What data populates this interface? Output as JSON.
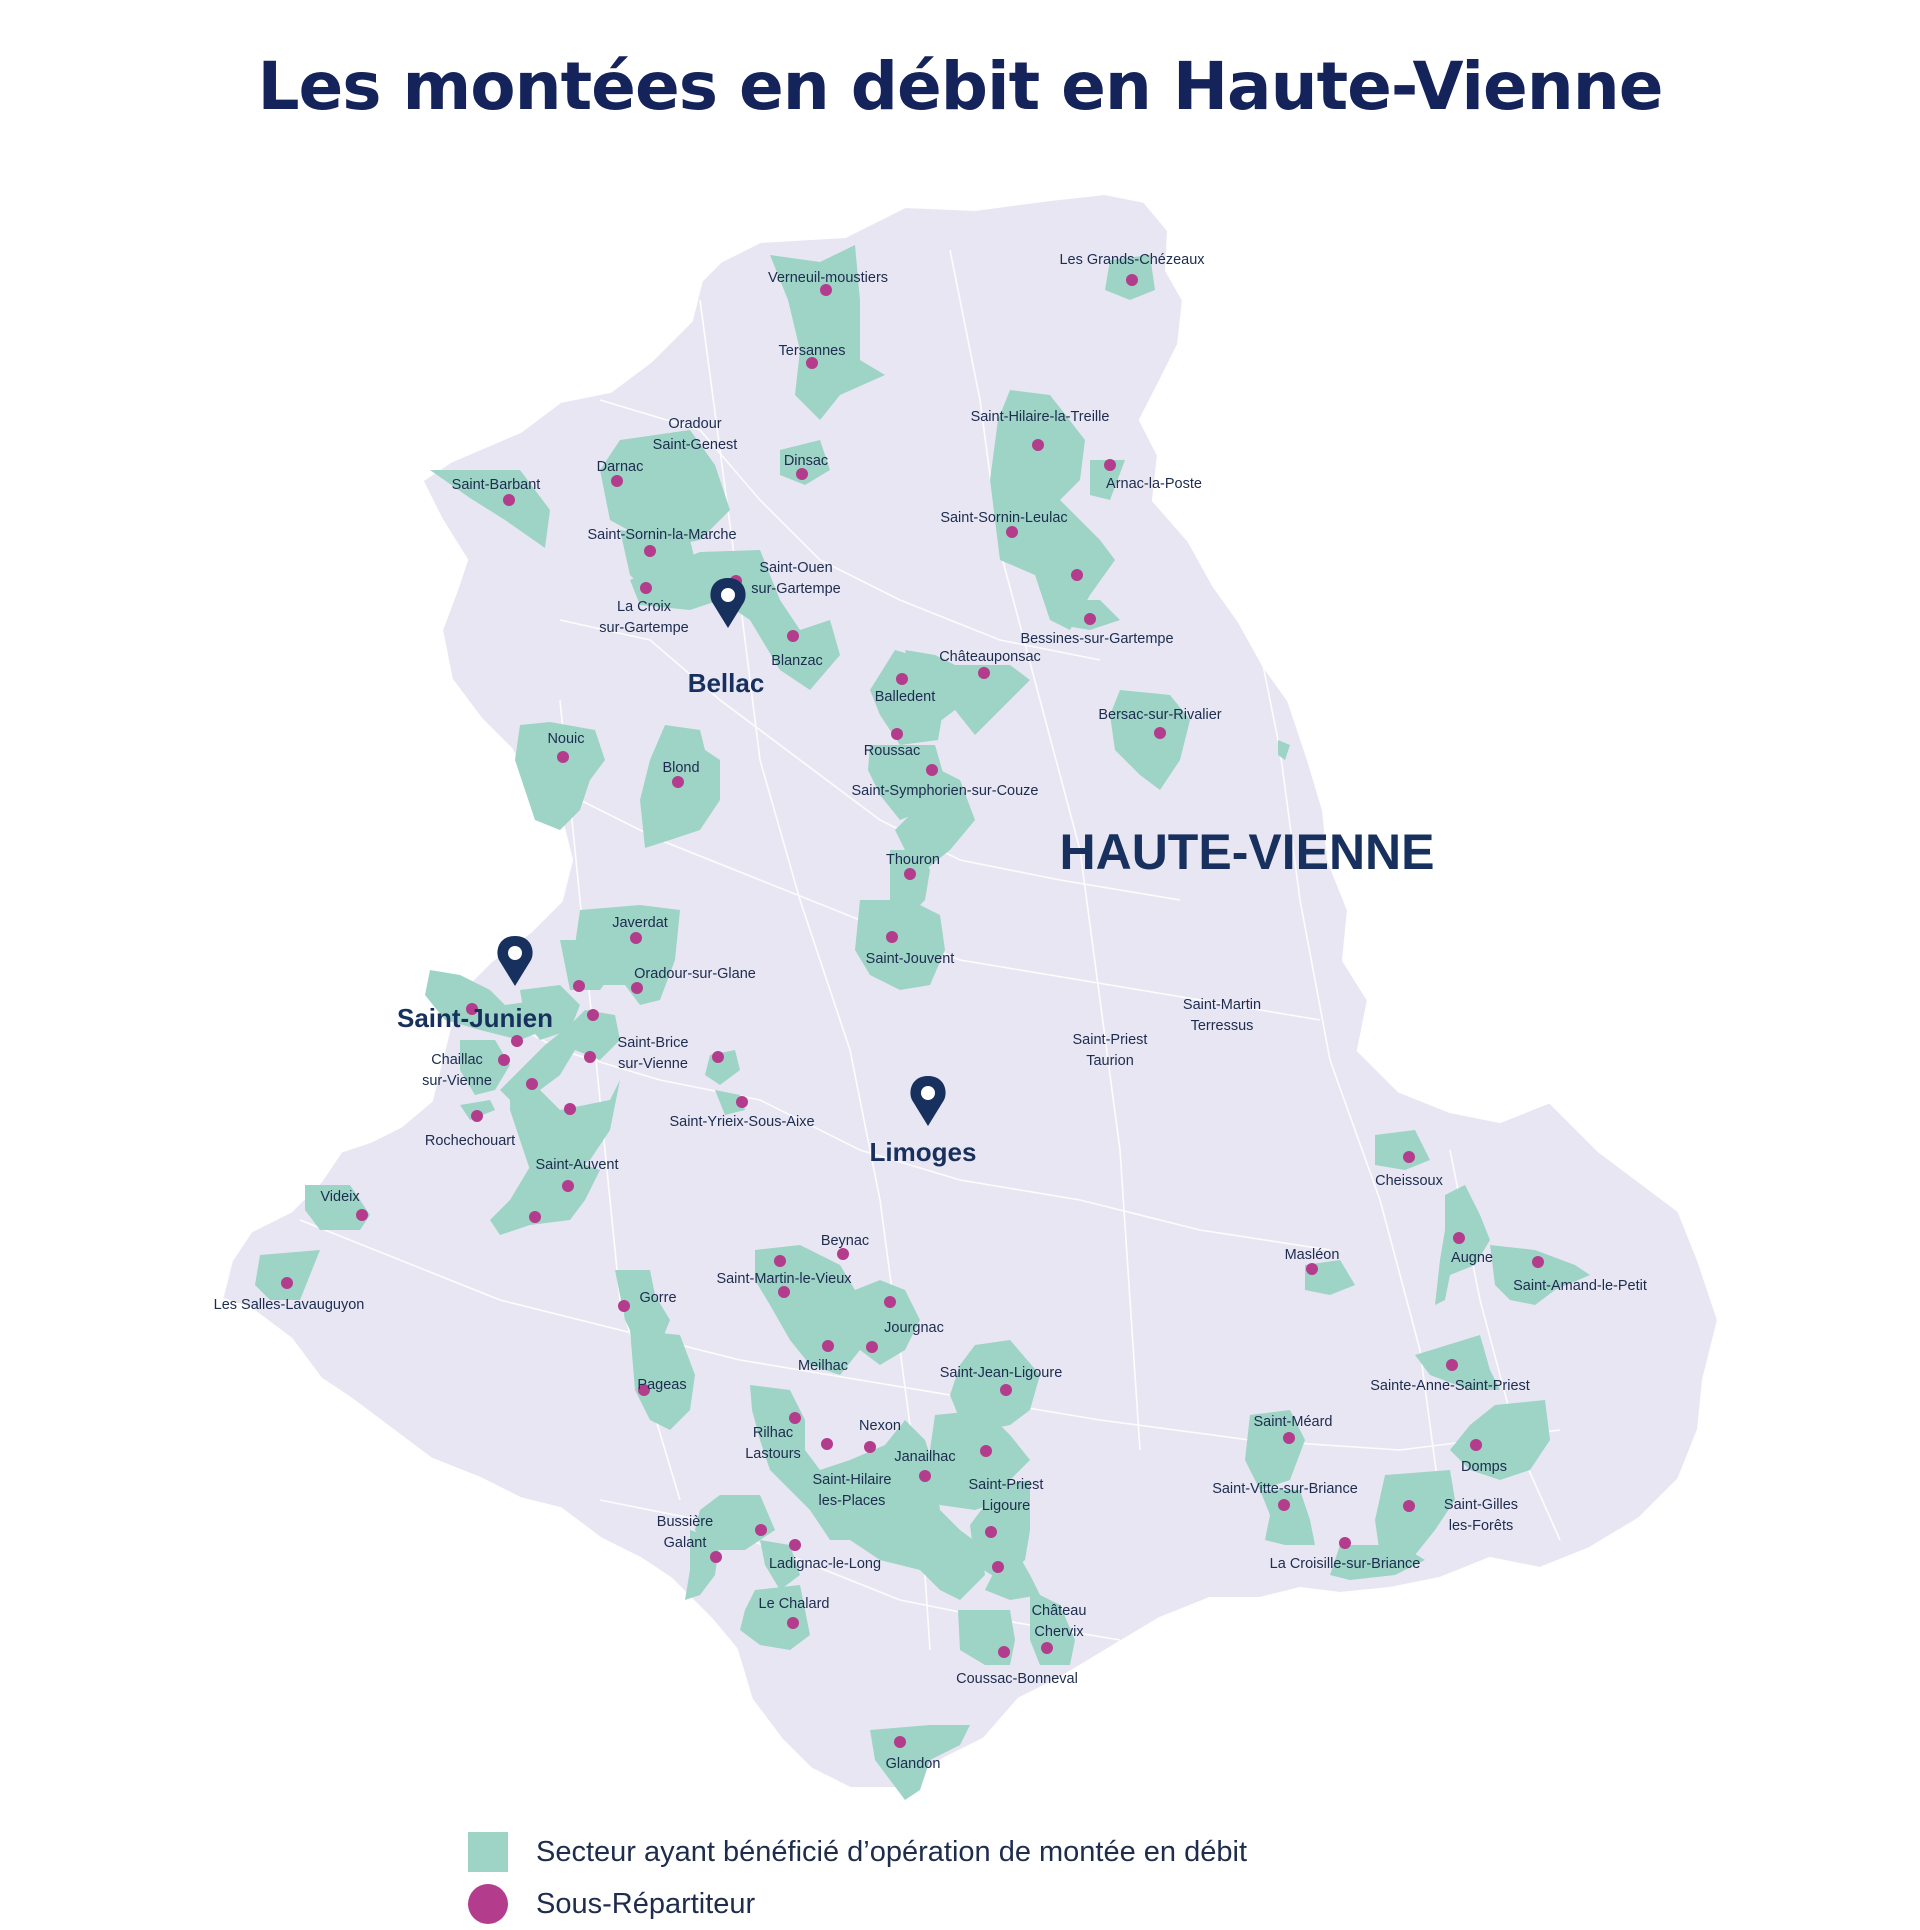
{
  "title": "Les montées en débit en Haute-Vienne",
  "region_label": "HAUTE-VIENNE",
  "colors": {
    "department_fill": "#e8e6f3",
    "sector_fill": "#9dd4c5",
    "sub_distributor_dot": "#b33d8c",
    "city_marker": "#17305d",
    "title": "#14235a"
  },
  "cities": [
    {
      "id": "bellac",
      "name": "Bellac"
    },
    {
      "id": "saint-junien",
      "name": "Saint-Junien"
    },
    {
      "id": "limoges",
      "name": "Limoges"
    }
  ],
  "communes": [
    {
      "id": "verneuil",
      "lines": [
        "Verneuil-moustiers"
      ]
    },
    {
      "id": "tersannes",
      "lines": [
        "Tersannes"
      ]
    },
    {
      "id": "grands-chezeaux",
      "lines": [
        "Les Grands-Chézeaux"
      ]
    },
    {
      "id": "oradour-st-genest",
      "lines": [
        "Oradour",
        "Saint-Genest"
      ]
    },
    {
      "id": "darnac",
      "lines": [
        "Darnac"
      ]
    },
    {
      "id": "dinsac",
      "lines": [
        "Dinsac"
      ]
    },
    {
      "id": "saint-barbant",
      "lines": [
        "Saint-Barbant"
      ]
    },
    {
      "id": "st-hilaire-treille",
      "lines": [
        "Saint-Hilaire-la-Treille"
      ]
    },
    {
      "id": "arnac",
      "lines": [
        "Arnac-la-Poste"
      ]
    },
    {
      "id": "st-sornin-marche",
      "lines": [
        "Saint-Sornin-la-Marche"
      ]
    },
    {
      "id": "st-sornin-leulac",
      "lines": [
        "Saint-Sornin-Leulac"
      ]
    },
    {
      "id": "st-ouen",
      "lines": [
        "Saint-Ouen",
        "sur-Gartempe"
      ]
    },
    {
      "id": "la-croix",
      "lines": [
        "La Croix",
        "sur-Gartempe"
      ]
    },
    {
      "id": "blanzac",
      "lines": [
        "Blanzac"
      ]
    },
    {
      "id": "bessines",
      "lines": [
        "Bessines-sur-Gartempe"
      ]
    },
    {
      "id": "chateauponsac",
      "lines": [
        "Châteauponsac"
      ]
    },
    {
      "id": "balledent",
      "lines": [
        "Balledent"
      ]
    },
    {
      "id": "bersac",
      "lines": [
        "Bersac-sur-Rivalier"
      ]
    },
    {
      "id": "nouic",
      "lines": [
        "Nouic"
      ]
    },
    {
      "id": "blond",
      "lines": [
        "Blond"
      ]
    },
    {
      "id": "roussac",
      "lines": [
        "Roussac"
      ]
    },
    {
      "id": "st-symphorien",
      "lines": [
        "Saint-Symphorien-sur-Couze"
      ]
    },
    {
      "id": "thouron",
      "lines": [
        "Thouron"
      ]
    },
    {
      "id": "javerdat",
      "lines": [
        "Javerdat"
      ]
    },
    {
      "id": "oradour-glane",
      "lines": [
        "Oradour-sur-Glane"
      ]
    },
    {
      "id": "st-jouvent",
      "lines": [
        "Saint-Jouvent"
      ]
    },
    {
      "id": "st-martin-terressus",
      "lines": [
        "Saint-Martin",
        "Terressus"
      ]
    },
    {
      "id": "st-priest-taurion",
      "lines": [
        "Saint-Priest",
        "Taurion"
      ]
    },
    {
      "id": "chaillac",
      "lines": [
        "Chaillac",
        "sur-Vienne"
      ]
    },
    {
      "id": "st-brice",
      "lines": [
        "Saint-Brice",
        "sur-Vienne"
      ]
    },
    {
      "id": "st-yrieix-aixe",
      "lines": [
        "Saint-Yrieix-Sous-Aixe"
      ]
    },
    {
      "id": "rochechouart",
      "lines": [
        "Rochechouart"
      ]
    },
    {
      "id": "st-auvent",
      "lines": [
        "Saint-Auvent"
      ]
    },
    {
      "id": "videix",
      "lines": [
        "Videix"
      ]
    },
    {
      "id": "cheissoux",
      "lines": [
        "Cheissoux"
      ]
    },
    {
      "id": "les-salles",
      "lines": [
        "Les Salles-Lavauguyon"
      ]
    },
    {
      "id": "beynac",
      "lines": [
        "Beynac"
      ]
    },
    {
      "id": "st-martin-vieux",
      "lines": [
        "Saint-Martin-le-Vieux"
      ]
    },
    {
      "id": "masleon",
      "lines": [
        "Masléon"
      ]
    },
    {
      "id": "augne",
      "lines": [
        "Augne"
      ]
    },
    {
      "id": "st-amand",
      "lines": [
        "Saint-Amand-le-Petit"
      ]
    },
    {
      "id": "gorre",
      "lines": [
        "Gorre"
      ]
    },
    {
      "id": "jourgnac",
      "lines": [
        "Jourgnac"
      ]
    },
    {
      "id": "meilhac",
      "lines": [
        "Meilhac"
      ]
    },
    {
      "id": "st-jean-ligoure",
      "lines": [
        "Saint-Jean-Ligoure"
      ]
    },
    {
      "id": "pageas",
      "lines": [
        "Pageas"
      ]
    },
    {
      "id": "ste-anne",
      "lines": [
        "Sainte-Anne-Saint-Priest"
      ]
    },
    {
      "id": "rilhac",
      "lines": [
        "Rilhac",
        "Lastours"
      ]
    },
    {
      "id": "nexon",
      "lines": [
        "Nexon"
      ]
    },
    {
      "id": "janailhac",
      "lines": [
        "Janailhac"
      ]
    },
    {
      "id": "st-meard",
      "lines": [
        "Saint-Méard"
      ]
    },
    {
      "id": "domps",
      "lines": [
        "Domps"
      ]
    },
    {
      "id": "st-hilaire-places",
      "lines": [
        "Saint-Hilaire",
        "les-Places"
      ]
    },
    {
      "id": "st-priest-ligoure",
      "lines": [
        "Saint-Priest",
        "Ligoure"
      ]
    },
    {
      "id": "st-vitte",
      "lines": [
        "Saint-Vitte-sur-Briance"
      ]
    },
    {
      "id": "st-gilles",
      "lines": [
        "Saint-Gilles",
        "les-Forêts"
      ]
    },
    {
      "id": "bussiere",
      "lines": [
        "Bussière",
        "Galant"
      ]
    },
    {
      "id": "ladignac",
      "lines": [
        "Ladignac-le-Long"
      ]
    },
    {
      "id": "la-croisille",
      "lines": [
        "La Croisille-sur-Briance"
      ]
    },
    {
      "id": "le-chalard",
      "lines": [
        "Le Chalard"
      ]
    },
    {
      "id": "chateau-chervix",
      "lines": [
        "Château",
        "Chervix"
      ]
    },
    {
      "id": "coussac",
      "lines": [
        "Coussac-Bonneval"
      ]
    },
    {
      "id": "glandon",
      "lines": [
        "Glandon"
      ]
    }
  ],
  "legend": {
    "sector": "Secteur ayant bénéficié d’opération de montée en débit",
    "sub_distributor": "Sous-Répartiteur"
  }
}
